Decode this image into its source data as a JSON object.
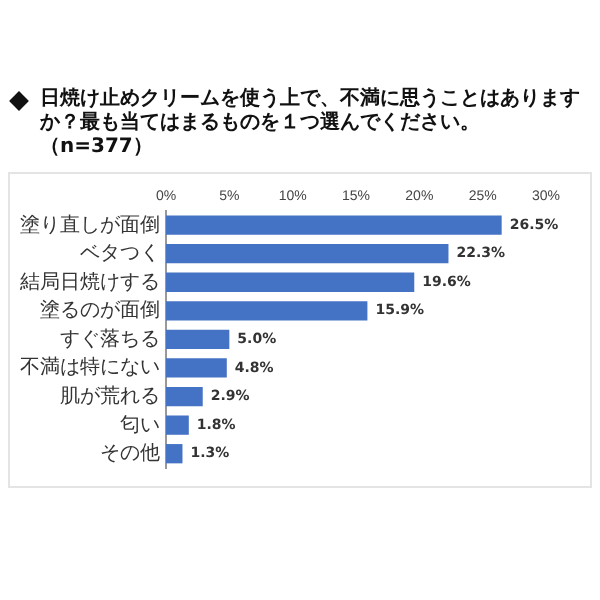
{
  "chart_data": {
    "type": "bar",
    "orientation": "horizontal",
    "title": "日焼け止めクリームを使う上で、不満に思うことはありますか？最も当てはまるものを１つ選んでください。（n=377）",
    "categories": [
      "塗り直しが面倒",
      "ベタつく",
      "結局日焼けする",
      "塗るのが面倒",
      "すぐ落ちる",
      "不満は特にない",
      "肌が荒れる",
      "匂い",
      "その他"
    ],
    "values": [
      26.5,
      22.3,
      19.6,
      15.9,
      5.0,
      4.8,
      2.9,
      1.8,
      1.3
    ],
    "value_labels": [
      "26.5%",
      "22.3%",
      "19.6%",
      "15.9%",
      "5.0%",
      "4.8%",
      "2.9%",
      "1.8%",
      "1.3%"
    ],
    "color": "#4472c4",
    "xlim": [
      0,
      30
    ],
    "xticks": [
      {
        "value": 0,
        "label": "0%"
      },
      {
        "value": 5,
        "label": "5%"
      },
      {
        "value": 10,
        "label": "10%"
      },
      {
        "value": 15,
        "label": "15%"
      },
      {
        "value": 20,
        "label": "20%"
      },
      {
        "value": 25,
        "label": "25%"
      },
      {
        "value": 30,
        "label": "30%"
      }
    ],
    "grid": false
  }
}
